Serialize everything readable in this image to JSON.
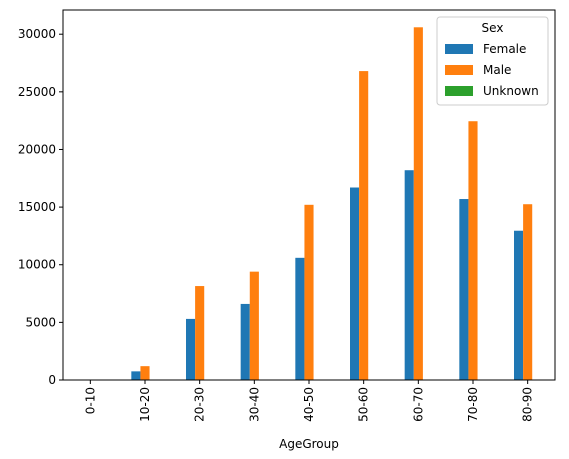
{
  "chart_data": {
    "type": "bar",
    "xlabel": "AgeGroup",
    "ylabel": "",
    "ylim": [
      0,
      32100
    ],
    "yticks": [
      0,
      5000,
      10000,
      15000,
      20000,
      25000,
      30000
    ],
    "categories": [
      "0-10",
      "10-20",
      "20-30",
      "30-40",
      "40-50",
      "50-60",
      "60-70",
      "70-80",
      "80-90"
    ],
    "series": [
      {
        "name": "Female",
        "color": "#1f77b4",
        "values": [
          0,
          750,
          5300,
          6600,
          10600,
          16700,
          18200,
          15700,
          12950
        ]
      },
      {
        "name": "Male",
        "color": "#ff7f0e",
        "values": [
          0,
          1200,
          8150,
          9400,
          15200,
          26800,
          30600,
          22450,
          15250
        ]
      },
      {
        "name": "Unknown",
        "color": "#2ca02c",
        "values": [
          0,
          0,
          0,
          0,
          0,
          0,
          0,
          0,
          0
        ]
      }
    ],
    "legend": {
      "title": "Sex",
      "position": "top-right"
    },
    "grid": false
  }
}
